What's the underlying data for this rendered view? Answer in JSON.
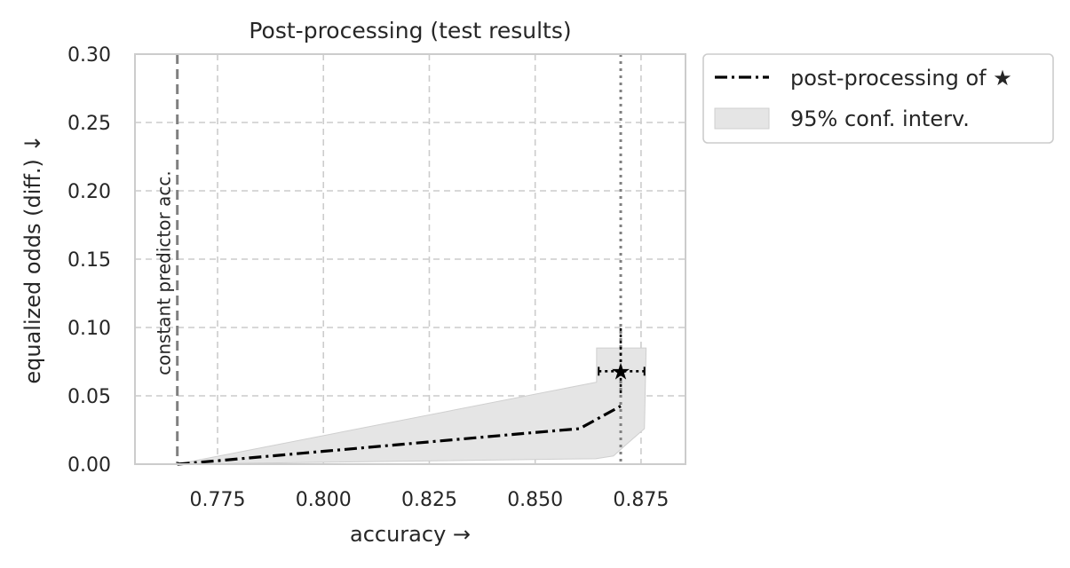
{
  "chart_data": {
    "type": "line",
    "title": "Post-processing (test results)",
    "xlabel": "accuracy →",
    "ylabel": "equalized odds (diff.) ↓",
    "xlim": [
      0.7555,
      0.8855
    ],
    "ylim": [
      0.0,
      0.3
    ],
    "xticks": [
      0.775,
      0.8,
      0.825,
      0.85,
      0.875
    ],
    "xtick_labels": [
      "0.775",
      "0.800",
      "0.825",
      "0.850",
      "0.875"
    ],
    "yticks": [
      0.0,
      0.05,
      0.1,
      0.15,
      0.2,
      0.25,
      0.3
    ],
    "ytick_labels": [
      "0.00",
      "0.05",
      "0.10",
      "0.15",
      "0.20",
      "0.25",
      "0.30"
    ],
    "grid": true,
    "legend_position": "outside top-right",
    "series": [
      {
        "name": "post-processing of ★",
        "style": "dash-dot",
        "color": "#000000",
        "x": [
          0.7655,
          0.775,
          0.8,
          0.825,
          0.85,
          0.8605,
          0.8702
        ],
        "y": [
          0.0,
          0.0025,
          0.0094,
          0.0163,
          0.0232,
          0.026,
          0.0425
        ]
      }
    ],
    "confidence_band": {
      "name": "95% conf. interv.",
      "color": "#e5e5e5",
      "x": [
        0.7655,
        0.8645,
        0.865,
        0.8715,
        0.8755,
        0.8762,
        0.8763,
        0.8755,
        0.8715,
        0.869,
        0.864,
        0.7655
      ],
      "y_upper": [
        0.0,
        0.06,
        0.085,
        0.085,
        0.085,
        0.085,
        0.0,
        0.0,
        0.0,
        0.0,
        0.0,
        0.0
      ],
      "polygon": [
        [
          0.7655,
          0.0
        ],
        [
          0.8645,
          0.06
        ],
        [
          0.8645,
          0.085
        ],
        [
          0.8762,
          0.085
        ],
        [
          0.8758,
          0.026
        ],
        [
          0.871,
          0.013
        ],
        [
          0.8685,
          0.006
        ],
        [
          0.8643,
          0.004
        ],
        [
          0.7655,
          0.0
        ]
      ]
    },
    "reference_lines": [
      {
        "orientation": "vertical",
        "x": 0.7655,
        "style": "dashed",
        "color": "#808080",
        "label": "constant predictor acc."
      },
      {
        "orientation": "vertical",
        "x": 0.8702,
        "style": "dotted",
        "color": "#808080"
      }
    ],
    "reference_point": {
      "marker": "★",
      "x": 0.8702,
      "y": 0.068,
      "x_err": [
        0.865,
        0.8758
      ],
      "y_err": [
        0.052,
        0.1
      ]
    }
  }
}
